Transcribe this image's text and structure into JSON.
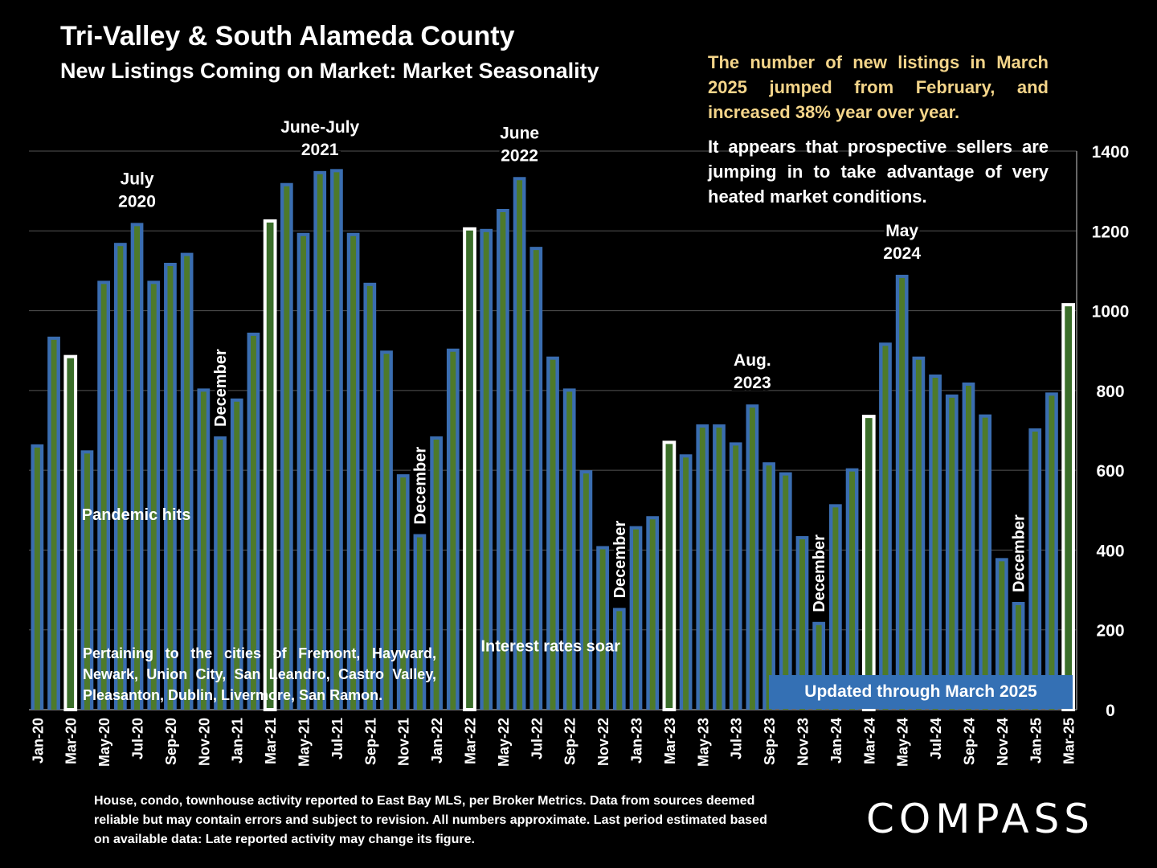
{
  "header": {
    "title": "Tri-Valley & South Alameda County",
    "subtitle": "New Listings Coming on Market: Market Seasonality"
  },
  "notes": {
    "yellow": "The number of new listings in March 2025 jumped from February, and increased 38% year over year.",
    "white": "It appears that prospective sellers are jumping in to take advantage of very heated market conditions."
  },
  "pertaining": "Pertaining to the cities of Fremont, Hayward, Newark, Union City, San Leandro, Castro Valley, Pleasanton, Dublin, Livermore, San Ramon.",
  "updated": "Updated through March 2025",
  "footnote": "House, condo, townhouse activity reported to East Bay MLS, per Broker Metrics. Data from sources deemed reliable but may contain errors and subject to revision. All numbers approximate. Last period estimated based on available data: Late reported activity may change its figure.",
  "logo": "COMPASS",
  "colors": {
    "bar_fill": "#3a6db0",
    "bar_center": "#4e7a2a",
    "march_fill": "#3b6e2a",
    "march_stroke": "#ffffff",
    "grid": "#555555",
    "note_yellow": "#f4d58a",
    "updated_bg": "#3470b4"
  },
  "chart_data": {
    "type": "bar",
    "categories": [
      "Jan-20",
      "Feb-20",
      "Mar-20",
      "Apr-20",
      "May-20",
      "Jun-20",
      "Jul-20",
      "Aug-20",
      "Sep-20",
      "Oct-20",
      "Nov-20",
      "Dec-20",
      "Jan-21",
      "Feb-21",
      "Mar-21",
      "Apr-21",
      "May-21",
      "Jun-21",
      "Jul-21",
      "Aug-21",
      "Sep-21",
      "Oct-21",
      "Nov-21",
      "Dec-21",
      "Jan-22",
      "Feb-22",
      "Mar-22",
      "Apr-22",
      "May-22",
      "Jun-22",
      "Jul-22",
      "Aug-22",
      "Sep-22",
      "Oct-22",
      "Nov-22",
      "Dec-22",
      "Jan-23",
      "Feb-23",
      "Mar-23",
      "Apr-23",
      "May-23",
      "Jun-23",
      "Jul-23",
      "Aug-23",
      "Sep-23",
      "Oct-23",
      "Nov-23",
      "Dec-23",
      "Jan-24",
      "Feb-24",
      "Mar-24",
      "Apr-24",
      "May-24",
      "Jun-24",
      "Jul-24",
      "Aug-24",
      "Sep-24",
      "Oct-24",
      "Nov-24",
      "Dec-24",
      "Jan-25",
      "Feb-25",
      "Mar-25"
    ],
    "x_tick_labels": [
      "Jan-20",
      "Mar-20",
      "May-20",
      "Jul-20",
      "Sep-20",
      "Nov-20",
      "Jan-21",
      "Mar-21",
      "May-21",
      "Jul-21",
      "Sep-21",
      "Nov-21",
      "Jan-22",
      "Mar-22",
      "May-22",
      "Jul-22",
      "Sep-22",
      "Nov-22",
      "Jan-23",
      "Mar-23",
      "May-23",
      "Jul-23",
      "Sep-23",
      "Nov-23",
      "Jan-24",
      "Mar-24",
      "May-24",
      "Jul-24",
      "Sep-24",
      "Nov-24",
      "Jan-25",
      "Mar-25"
    ],
    "values": [
      665,
      935,
      885,
      650,
      1075,
      1170,
      1220,
      1075,
      1120,
      1145,
      805,
      685,
      780,
      945,
      1225,
      1320,
      1195,
      1350,
      1355,
      1195,
      1070,
      900,
      590,
      440,
      685,
      905,
      1205,
      1205,
      1255,
      1335,
      1160,
      885,
      805,
      600,
      410,
      255,
      460,
      485,
      670,
      640,
      715,
      715,
      670,
      765,
      620,
      595,
      435,
      220,
      515,
      605,
      735,
      920,
      1090,
      885,
      840,
      790,
      820,
      740,
      380,
      270,
      705,
      795,
      1015
    ],
    "highlight_categories": [
      "Mar-20",
      "Mar-21",
      "Mar-22",
      "Mar-23",
      "Mar-24",
      "Mar-25"
    ],
    "y_ticks": [
      0,
      200,
      400,
      600,
      800,
      1000,
      1200,
      1400
    ],
    "ylim": [
      0,
      1400
    ],
    "y_axis_side": "right",
    "grid": true,
    "annotations": [
      {
        "category": "Jul-20",
        "lines": [
          "July",
          "2020"
        ]
      },
      {
        "category": "Jun-21",
        "lines": [
          "June-July",
          "2021"
        ]
      },
      {
        "category": "Jun-22",
        "lines": [
          "June",
          "2022"
        ]
      },
      {
        "category": "Aug-23",
        "lines": [
          "Aug.",
          "2023"
        ]
      },
      {
        "category": "May-24",
        "lines": [
          "May",
          "2024"
        ]
      }
    ],
    "vertical_labels": [
      {
        "category": "Dec-20",
        "text": "December"
      },
      {
        "category": "Dec-21",
        "text": "December"
      },
      {
        "category": "Dec-22",
        "text": "December"
      },
      {
        "category": "Dec-23",
        "text": "December"
      },
      {
        "category": "Dec-24",
        "text": "December"
      }
    ],
    "events": [
      {
        "category": "Mar-20",
        "text": "Pandemic hits",
        "value": 490
      },
      {
        "category": "Mar-22",
        "text": "Interest rates soar",
        "value": 160
      }
    ]
  }
}
